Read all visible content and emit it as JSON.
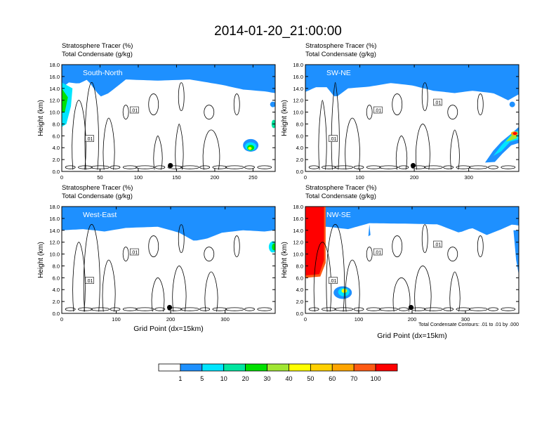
{
  "title": "2014-01-20_21:00:00",
  "panel_title_line1": "Stratosphere Tracer   (%)",
  "panel_title_line2": "Total Condensate   (g/kg)",
  "ylabel": "Height (km)",
  "xlabel": "Grid Point (dx=15km)",
  "contour_note": "Total Condensate Contours: .01 to .01 by .000",
  "colorbar": {
    "colors": [
      "#ffffff",
      "#1e90ff",
      "#00e5ff",
      "#00e6a0",
      "#00e000",
      "#a0e632",
      "#ffff00",
      "#ffd000",
      "#ffa500",
      "#ff5a14",
      "#ff0000"
    ],
    "labels": [
      "1",
      "5",
      "10",
      "20",
      "30",
      "40",
      "50",
      "60",
      "70",
      "100"
    ]
  },
  "contour_label": ".01",
  "chart_data": [
    {
      "type": "heatmap",
      "name": "South-North",
      "xlim": [
        0,
        279
      ],
      "ylim": [
        0,
        18
      ],
      "xticks": [
        "0",
        "50",
        "100",
        "150",
        "200",
        "250"
      ],
      "yticks": [
        "0.0",
        "2.0",
        "4.0",
        "6.0",
        "8.0",
        "10.0",
        "12.0",
        "14.0",
        "16.0",
        "18.0"
      ],
      "marker_x": 142
    },
    {
      "type": "heatmap",
      "name": "SW-NE",
      "xlim": [
        0,
        392
      ],
      "ylim": [
        0,
        18
      ],
      "xticks": [
        "0",
        "100",
        "200",
        "300"
      ],
      "yticks": [
        "0.0",
        "2.0",
        "4.0",
        "6.0",
        "8.0",
        "10.0",
        "12.0",
        "14.0",
        "16.0",
        "18.0"
      ],
      "marker_x": 198
    },
    {
      "type": "heatmap",
      "name": "West-East",
      "xlim": [
        0,
        392
      ],
      "ylim": [
        0,
        18
      ],
      "xticks": [
        "0",
        "100",
        "200",
        "300"
      ],
      "yticks": [
        "0.0",
        "2.0",
        "4.0",
        "6.0",
        "8.0",
        "10.0",
        "12.0",
        "14.0",
        "16.0",
        "18.0"
      ],
      "marker_x": 198
    },
    {
      "type": "heatmap",
      "name": "NW-SE",
      "xlim": [
        0,
        400
      ],
      "ylim": [
        0,
        18
      ],
      "xticks": [
        "0",
        "100",
        "200",
        "300"
      ],
      "yticks": [
        "0.0",
        "2.0",
        "4.0",
        "6.0",
        "8.0",
        "10.0",
        "12.0",
        "14.0",
        "16.0",
        "18.0"
      ],
      "marker_x": 198
    }
  ]
}
